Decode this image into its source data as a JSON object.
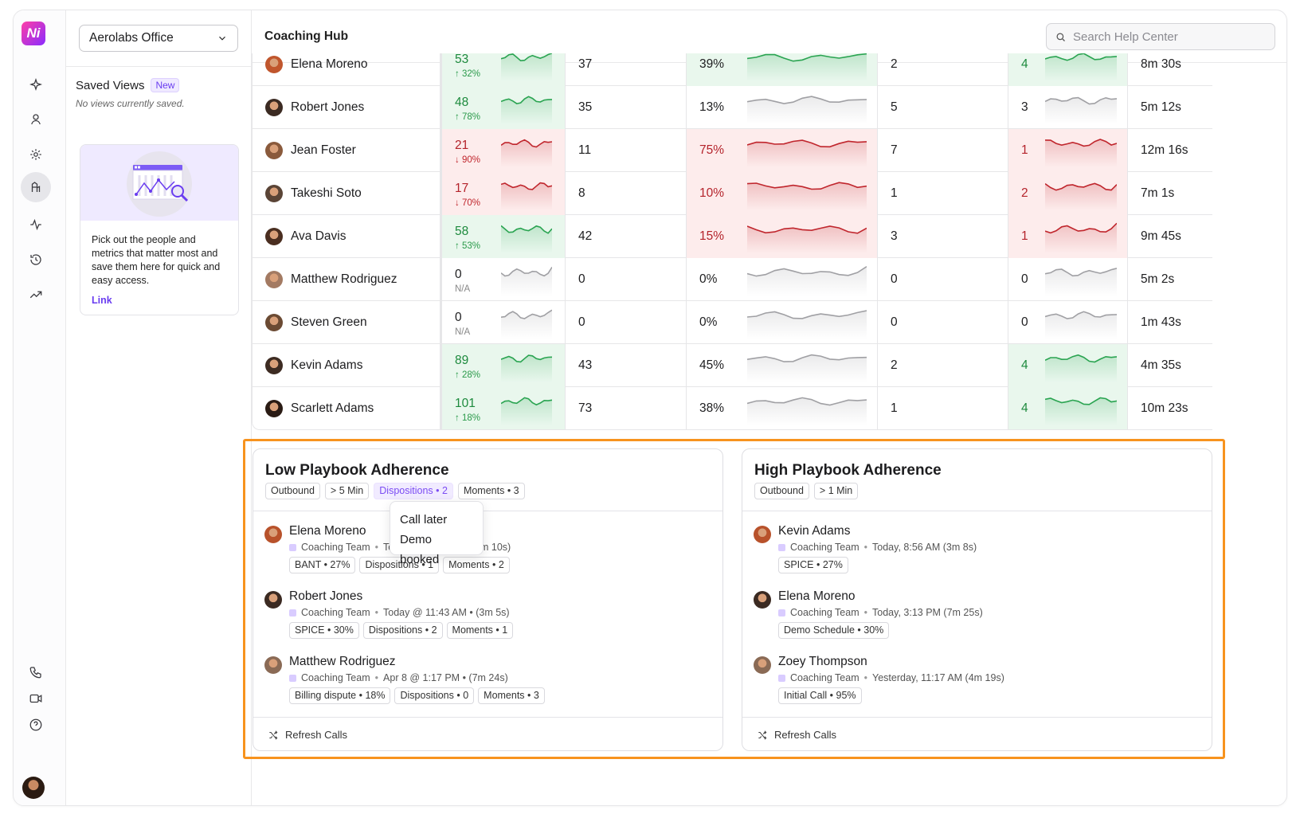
{
  "app": {
    "logo_text": "Ni",
    "office_select": "Aerolabs Office",
    "page_title": "Coaching Hub",
    "search_placeholder": "Search Help Center"
  },
  "rail": {
    "items": [
      {
        "icon": "sparkle-icon"
      },
      {
        "icon": "user-icon"
      },
      {
        "icon": "gear-icon"
      },
      {
        "icon": "coaching-icon",
        "active": true
      },
      {
        "icon": "pulse-icon"
      },
      {
        "icon": "history-icon"
      },
      {
        "icon": "trend-icon"
      }
    ],
    "bottom": [
      {
        "icon": "phone-icon"
      },
      {
        "icon": "video-icon"
      },
      {
        "icon": "help-icon"
      }
    ]
  },
  "saved_views": {
    "title": "Saved Views",
    "badge": "New",
    "empty_text": "No views currently saved.",
    "tip_text": "Pick out the people and metrics that matter most and save them here for quick and easy access.",
    "tip_link": "Link"
  },
  "table": {
    "rows": [
      {
        "name": "Elena Moreno",
        "v1": "53",
        "d1": "↑ 32%",
        "t1": "up",
        "v2": "37",
        "v3": "39%",
        "t3": "up",
        "v4": "2",
        "v5": "4",
        "t5": "up",
        "v6": "8m 30s"
      },
      {
        "name": "Robert Jones",
        "v1": "48",
        "d1": "↑ 78%",
        "t1": "up",
        "v2": "35",
        "v3": "13%",
        "t3": "neutral",
        "v4": "5",
        "v5": "3",
        "t5": "neutral",
        "v6": "5m 12s"
      },
      {
        "name": "Jean Foster",
        "v1": "21",
        "d1": "↓ 90%",
        "t1": "down",
        "v2": "11",
        "v3": "75%",
        "t3": "down",
        "v4": "7",
        "v5": "1",
        "t5": "down",
        "v6": "12m 16s"
      },
      {
        "name": "Takeshi Soto",
        "v1": "17",
        "d1": "↓ 70%",
        "t1": "down",
        "v2": "8",
        "v3": "10%",
        "t3": "down",
        "v4": "1",
        "v5": "2",
        "t5": "down",
        "v6": "7m 1s"
      },
      {
        "name": "Ava Davis",
        "v1": "58",
        "d1": "↑ 53%",
        "t1": "up",
        "v2": "42",
        "v3": "15%",
        "t3": "down",
        "v4": "3",
        "v5": "1",
        "t5": "down",
        "v6": "9m 45s"
      },
      {
        "name": "Matthew Rodriguez",
        "v1": "0",
        "d1": "N/A",
        "t1": "neutral",
        "v2": "0",
        "v3": "0%",
        "t3": "neutral",
        "v4": "0",
        "v5": "0",
        "t5": "neutral",
        "v6": "5m 2s"
      },
      {
        "name": "Steven Green",
        "v1": "0",
        "d1": "N/A",
        "t1": "neutral",
        "v2": "0",
        "v3": "0%",
        "t3": "neutral",
        "v4": "0",
        "v5": "0",
        "t5": "neutral",
        "v6": "1m 43s"
      },
      {
        "name": "Kevin Adams",
        "v1": "89",
        "d1": "↑ 28%",
        "t1": "up",
        "v2": "43",
        "v3": "45%",
        "t3": "neutral",
        "v4": "2",
        "v5": "4",
        "t5": "up",
        "v6": "4m 35s"
      },
      {
        "name": "Scarlett Adams",
        "v1": "101",
        "d1": "↑ 18%",
        "t1": "up",
        "v2": "73",
        "v3": "38%",
        "t3": "neutral",
        "v4": "1",
        "v5": "4",
        "t5": "up",
        "v6": "10m 23s"
      }
    ]
  },
  "cards": {
    "low": {
      "title": "Low Playbook Adherence",
      "filters": [
        "Outbound",
        "> 5 Min",
        "Dispositions • 2",
        "Moments • 3"
      ],
      "active_filter": 2,
      "popover": [
        "Call later",
        "Demo booked"
      ],
      "calls": [
        {
          "name": "Elena Moreno",
          "team": "Coaching Team",
          "when": "Today @ 1:05 PM • (7m 10s)",
          "chips": [
            "BANT • 27%",
            "Dispositions • 1",
            "Moments • 2"
          ]
        },
        {
          "name": "Robert Jones",
          "team": "Coaching Team",
          "when": "Today @ 11:43 AM • (3m 5s)",
          "chips": [
            "SPICE • 30%",
            "Dispositions • 2",
            "Moments • 1"
          ]
        },
        {
          "name": "Matthew Rodriguez",
          "team": "Coaching Team",
          "when": "Apr 8 @ 1:17 PM • (7m 24s)",
          "chips": [
            "Billing dispute • 18%",
            "Dispositions • 0",
            "Moments • 3"
          ]
        }
      ],
      "refresh": "Refresh Calls"
    },
    "high": {
      "title": "High Playbook Adherence",
      "filters": [
        "Outbound",
        "> 1 Min"
      ],
      "calls": [
        {
          "name": "Kevin Adams",
          "team": "Coaching Team",
          "when": "Today, 8:56 AM (3m 8s)",
          "chips": [
            "SPICE • 27%"
          ]
        },
        {
          "name": "Elena Moreno",
          "team": "Coaching Team",
          "when": "Today, 3:13 PM (7m 25s)",
          "chips": [
            "Demo Schedule • 30%"
          ]
        },
        {
          "name": "Zoey Thompson",
          "team": "Coaching Team",
          "when": "Yesterday, 11:17 AM (4m 19s)",
          "chips": [
            "Initial Call • 95%"
          ]
        }
      ],
      "refresh": "Refresh Calls"
    }
  },
  "colors": {
    "accent": "#6a3df0",
    "highlight_border": "#f7931e",
    "up": "#1d8a3d",
    "down": "#b4232b",
    "neutral_spark": "#9a9a9a"
  }
}
